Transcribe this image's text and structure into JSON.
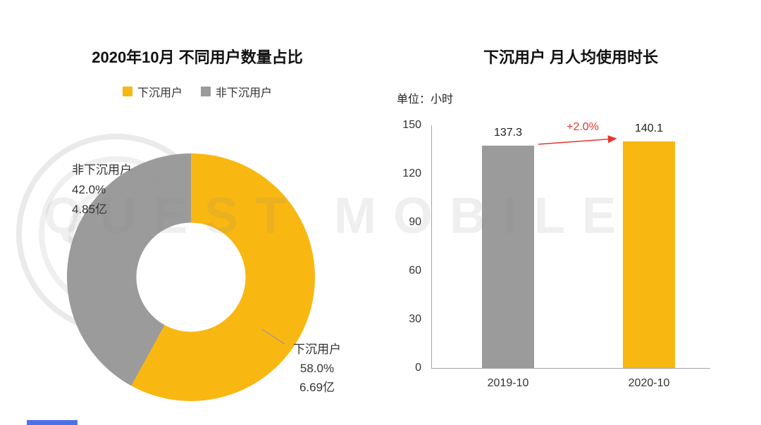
{
  "watermark": {
    "text": "QUEST MOBILE"
  },
  "colors": {
    "accent_yellow": "#F9B712",
    "gray": "#9B9B9B",
    "red": "#E8352E"
  },
  "chart_data": [
    {
      "type": "pie",
      "donut": true,
      "title": "2020年10月 不同用户数量占比",
      "legend": [
        "下沉用户",
        "非下沉用户"
      ],
      "slices": [
        {
          "label": "下沉用户",
          "percent": 58.0,
          "value_label": "58.0%",
          "count_label": "6.69亿",
          "color": "#F9B712"
        },
        {
          "label": "非下沉用户",
          "percent": 42.0,
          "value_label": "42.0%",
          "count_label": "4.85亿",
          "color": "#9B9B9B"
        }
      ]
    },
    {
      "type": "bar",
      "title": "下沉用户 月人均使用时长",
      "unit_label": "单位：小时",
      "categories": [
        "2019-10",
        "2020-10"
      ],
      "values": [
        137.3,
        140.1
      ],
      "value_labels": [
        "137.3",
        "140.1"
      ],
      "bar_colors": [
        "#9B9B9B",
        "#F9B712"
      ],
      "ylim": [
        0,
        150
      ],
      "yticks": [
        0,
        30,
        60,
        90,
        120,
        150
      ],
      "annotation": "+2.0%",
      "annotation_color": "#E8352E",
      "legend_position": "none",
      "grid": false
    }
  ]
}
